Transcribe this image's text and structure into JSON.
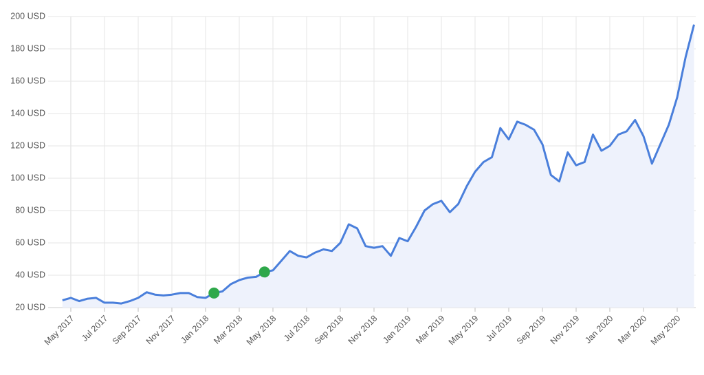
{
  "chart_data": {
    "type": "line",
    "categories": [
      null,
      "May 2017",
      null,
      null,
      null,
      "Jul 2017",
      null,
      null,
      null,
      "Sep 2017",
      null,
      null,
      null,
      "Nov 2017",
      null,
      null,
      null,
      "Jan 2018",
      null,
      null,
      null,
      "Mar 2018",
      null,
      null,
      null,
      "May 2018",
      null,
      null,
      null,
      "Jul 2018",
      null,
      null,
      null,
      "Sep 2018",
      null,
      null,
      null,
      "Nov 2018",
      null,
      null,
      null,
      "Jan 2019",
      null,
      null,
      null,
      "Mar 2019",
      null,
      null,
      null,
      "May 2019",
      null,
      null,
      null,
      "Jul 2019",
      null,
      null,
      null,
      "Sep 2019",
      null,
      null,
      null,
      "Nov 2019",
      null,
      null,
      null,
      "Jan 2020",
      null,
      null,
      null,
      "Mar 2020",
      null,
      null,
      null,
      "May 2020",
      null,
      null
    ],
    "series": [
      {
        "color": "#4a7fdb",
        "values": [
          24.5,
          26,
          24,
          25.5,
          26,
          23,
          23,
          22.5,
          24,
          26,
          29.5,
          28,
          27.5,
          28,
          29,
          29,
          26.5,
          26,
          29,
          30,
          34.5,
          37,
          38.5,
          39,
          42,
          43,
          49,
          55,
          52,
          51,
          54,
          56,
          55,
          60,
          71.5,
          69,
          58,
          57,
          58,
          52,
          63,
          61,
          70,
          80,
          84,
          86,
          79,
          84,
          95,
          104,
          110,
          113,
          131,
          124,
          135,
          133,
          130,
          121,
          102,
          98,
          116,
          108,
          110,
          127,
          117,
          120,
          127,
          129,
          136,
          126,
          109,
          121,
          133,
          150,
          175,
          195
        ]
      }
    ],
    "area_color": "#eef2fc",
    "markers": [
      18,
      24
    ],
    "marker_color": "#2ea84a",
    "ylim": [
      20,
      200
    ],
    "yticks": [
      {
        "value": 20,
        "label": "20 USD"
      },
      {
        "value": 40,
        "label": "40 USD"
      },
      {
        "value": 60,
        "label": "60 USD"
      },
      {
        "value": 80,
        "label": "80 USD"
      },
      {
        "value": 100,
        "label": "100 USD"
      },
      {
        "value": 120,
        "label": "120 USD"
      },
      {
        "value": 140,
        "label": "140 USD"
      },
      {
        "value": 160,
        "label": "160 USD"
      },
      {
        "value": 180,
        "label": "180 USD"
      },
      {
        "value": 200,
        "label": "200 USD"
      }
    ],
    "grid": true
  }
}
